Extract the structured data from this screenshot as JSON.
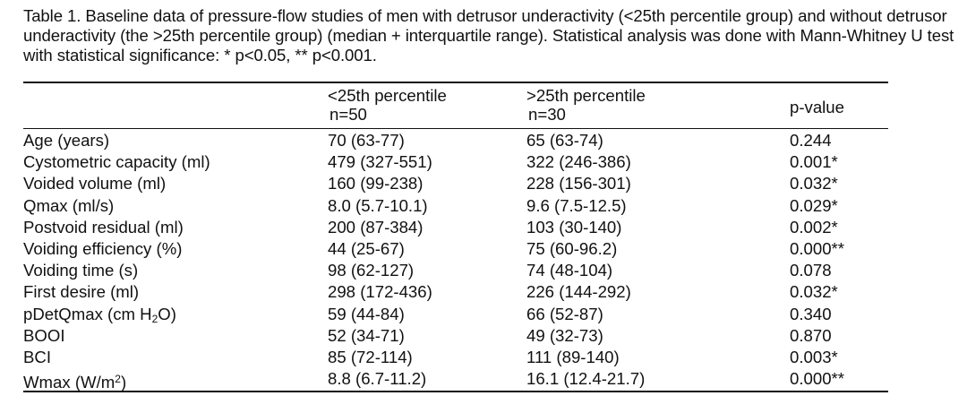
{
  "caption": "Table 1. Baseline data of pressure-flow studies of men with detrusor underactivity (<25th percentile group) and without detrusor underactivity (the >25th percentile group) (median + interquartile range). Statistical analysis was done with Mann-Whitney U test with statistical significance: * p<0.05, ** p<0.001.",
  "header": {
    "col1_label": "<25th percentile",
    "col1_n": "n=50",
    "col2_label": ">25th percentile",
    "col2_n": "n=30",
    "col3_label": "p-value"
  },
  "rows": [
    {
      "label": "Age (years)",
      "low": "70 (63-77)",
      "high": "65 (63-74)",
      "p": "0.244"
    },
    {
      "label": "Cystometric capacity (ml)",
      "low": "479 (327-551)",
      "high": "322 (246-386)",
      "p": "0.001*"
    },
    {
      "label": "Voided volume (ml)",
      "low": "160 (99-238)",
      "high": "228 (156-301)",
      "p": "0.032*"
    },
    {
      "label": "Qmax (ml/s)",
      "low": "8.0 (5.7-10.1)",
      "high": "9.6 (7.5-12.5)",
      "p": "0.029*"
    },
    {
      "label": "Postvoid residual (ml)",
      "low": "200 (87-384)",
      "high": "103 (30-140)",
      "p": "0.002*"
    },
    {
      "label": "Voiding efficiency (%)",
      "low": "44 (25-67)",
      "high": "75 (60-96.2)",
      "p": "0.000**"
    },
    {
      "label": "Voiding time (s)",
      "low": "98 (62-127)",
      "high": "74 (48-104)",
      "p": "0.078"
    },
    {
      "label": "First desire (ml)",
      "low": "298 (172-436)",
      "high": "226 (144-292)",
      "p": "0.032*"
    },
    {
      "label_pre": "pDetQmax (cm H",
      "label_script": "2",
      "label_post": "O)",
      "low": "59 (44-84)",
      "high": "66 (52-87)",
      "p": "0.340"
    },
    {
      "label": "BOOI",
      "low": "52 (34-71)",
      "high": "49 (32-73)",
      "p": "0.870"
    },
    {
      "label": "BCI",
      "low": "85 (72-114)",
      "high": "111 (89-140)",
      "p": "0.003*"
    },
    {
      "label_pre": "Wmax (W/m",
      "label_script": "2",
      "label_post": ")",
      "low": "8.8 (6.7-11.2)",
      "high": "16.1 (12.4-21.7)",
      "p": "0.000**"
    }
  ]
}
